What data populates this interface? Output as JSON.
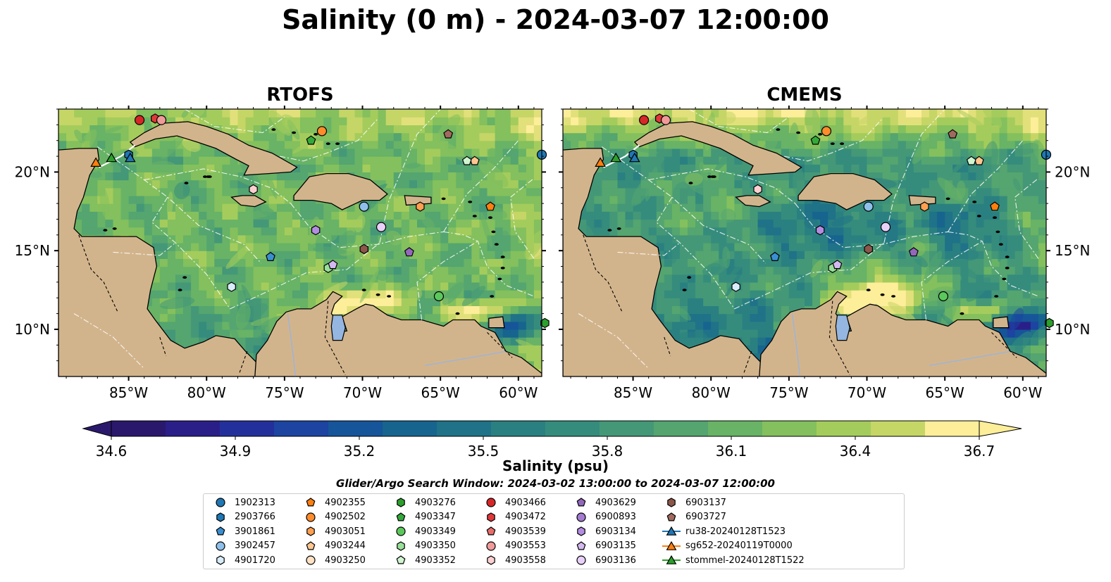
{
  "title": "Salinity (0 m) - 2024-03-07 12:00:00",
  "colors": {
    "land": "#d2b48c",
    "lake": "#94b6e0",
    "pacific": "#281868",
    "cmap": [
      "#2a186c",
      "#2a1f88",
      "#23309b",
      "#1c44a0",
      "#165599",
      "#17648f",
      "#1f7287",
      "#2a8081",
      "#358c7c",
      "#449877",
      "#54a56f",
      "#68b366",
      "#84c05d",
      "#a4cc5c",
      "#c5d666",
      "#e2e07a",
      "#fdee9a"
    ]
  },
  "chart_data": {
    "type": "heatmap",
    "panels": [
      {
        "title": "RTOFS",
        "variant": "rtofs"
      },
      {
        "title": "CMEMS",
        "variant": "cmems"
      }
    ],
    "x_ticks": [
      "85°W",
      "80°W",
      "75°W",
      "70°W",
      "65°W",
      "60°W"
    ],
    "y_ticks": [
      "20°N",
      "15°N",
      "10°N"
    ],
    "xlim": [
      -89.5,
      -58.5
    ],
    "ylim": [
      7,
      24
    ],
    "colorbar": {
      "label": "Salinity (psu)",
      "min": 34.6,
      "max": 36.7,
      "ticks": [
        "34.6",
        "34.9",
        "35.2",
        "35.5",
        "35.8",
        "36.1",
        "36.4",
        "36.7"
      ],
      "extend": "both"
    },
    "subtitle": "Glider/Argo Search Window: 2024-03-02 13:00:00 to 2024-03-07 12:00:00",
    "floats": [
      {
        "name": "1902313",
        "marker": "circle",
        "color": "#1f77b4",
        "lon": -58.5,
        "lat": 21.1
      },
      {
        "name": "2903766",
        "marker": "hexagon",
        "color": "#1f77b4",
        "lon": -85.0,
        "lat": 21.1
      },
      {
        "name": "3901861",
        "marker": "pentagon",
        "color": "#3a8fd0",
        "lon": -75.9,
        "lat": 14.6
      },
      {
        "name": "3902457",
        "marker": "circle",
        "color": "#8ec0ea",
        "lon": -69.9,
        "lat": 17.8
      },
      {
        "name": "4901720",
        "marker": "hexagon",
        "color": "#d8ecfa",
        "lon": -78.4,
        "lat": 12.7
      },
      {
        "name": "4902355",
        "marker": "pentagon",
        "color": "#ff7f0e",
        "lon": -61.8,
        "lat": 17.8
      },
      {
        "name": "4902502",
        "marker": "circle",
        "color": "#ff8c2a",
        "lon": -72.6,
        "lat": 22.6
      },
      {
        "name": "4903051",
        "marker": "hexagon",
        "color": "#ffa050",
        "lon": -66.3,
        "lat": 17.8
      },
      {
        "name": "4903244",
        "marker": "pentagon",
        "color": "#ffc690",
        "lon": -62.8,
        "lat": 20.7
      },
      {
        "name": "4903250",
        "marker": "circle",
        "color": "#ffe2c4",
        "lon": 0,
        "lat": 0,
        "hidden": true
      },
      {
        "name": "4903276",
        "marker": "hexagon",
        "color": "#2ca02c",
        "lon": -58.3,
        "lat": 10.4
      },
      {
        "name": "4903347",
        "marker": "pentagon",
        "color": "#34a93a",
        "lon": -73.3,
        "lat": 22.0
      },
      {
        "name": "4903349",
        "marker": "circle",
        "color": "#5cc85c",
        "lon": -65.1,
        "lat": 12.1
      },
      {
        "name": "4903350",
        "marker": "hexagon",
        "color": "#98e098",
        "lon": -72.2,
        "lat": 13.9
      },
      {
        "name": "4903352",
        "marker": "pentagon",
        "color": "#d0f5d0",
        "lon": -63.3,
        "lat": 20.7
      },
      {
        "name": "4903466",
        "marker": "circle",
        "color": "#d62728",
        "lon": -84.3,
        "lat": 23.3
      },
      {
        "name": "4903472",
        "marker": "hexagon",
        "color": "#e0383a",
        "lon": -83.3,
        "lat": 23.4
      },
      {
        "name": "4903539",
        "marker": "pentagon",
        "color": "#e86d6d",
        "lon": 0,
        "lat": 0,
        "hidden": true
      },
      {
        "name": "4903553",
        "marker": "circle",
        "color": "#f09a9a",
        "lon": -82.9,
        "lat": 23.3
      },
      {
        "name": "4903558",
        "marker": "hexagon",
        "color": "#fcd0d0",
        "lon": -77.0,
        "lat": 18.9
      },
      {
        "name": "4903629",
        "marker": "pentagon",
        "color": "#9467bd",
        "lon": -67.0,
        "lat": 14.9
      },
      {
        "name": "6900893",
        "marker": "circle",
        "color": "#a37bd0",
        "lon": 0,
        "lat": 0,
        "hidden": true
      },
      {
        "name": "6903134",
        "marker": "hexagon",
        "color": "#b38de0",
        "lon": -73.0,
        "lat": 16.3
      },
      {
        "name": "6903135",
        "marker": "pentagon",
        "color": "#d4b8f0",
        "lon": -71.9,
        "lat": 14.1
      },
      {
        "name": "6903136",
        "marker": "circle",
        "color": "#e8d0fa",
        "lon": -68.8,
        "lat": 16.5
      },
      {
        "name": "6903137",
        "marker": "hexagon",
        "color": "#8c564b",
        "lon": -69.9,
        "lat": 15.1
      },
      {
        "name": "6903727",
        "marker": "pentagon",
        "color": "#a06a5e",
        "lon": -64.5,
        "lat": 22.4
      }
    ],
    "gliders": [
      {
        "name": "ru38-20240128T1523",
        "color": "#1f77b4",
        "lon": -84.9,
        "lat": 20.9
      },
      {
        "name": "sg652-20240119T0000",
        "color": "#ff7f0e",
        "lon": -87.1,
        "lat": 20.6
      },
      {
        "name": "stommel-20240128T1522",
        "color": "#2ca02c",
        "lon": -86.1,
        "lat": 20.9
      }
    ]
  }
}
